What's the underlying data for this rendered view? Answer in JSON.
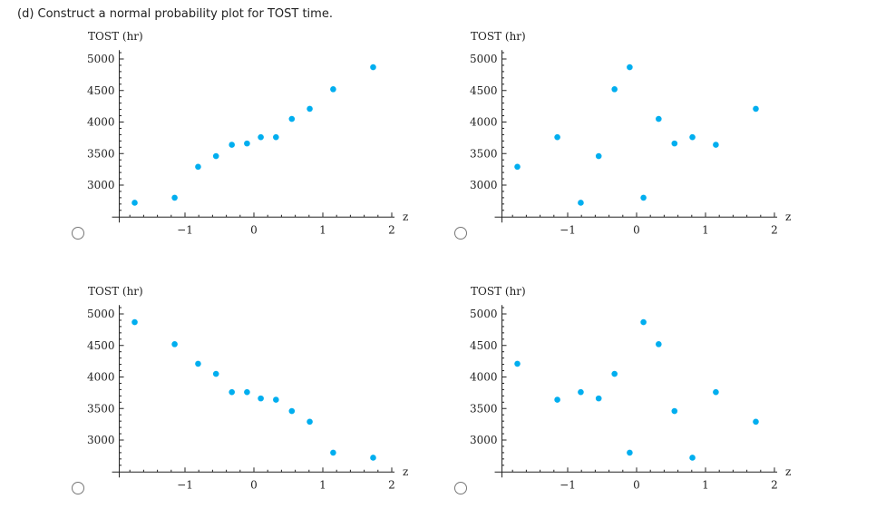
{
  "question": "(d) Construct a normal probability plot for TOST time.",
  "point_color": "#00aeef",
  "chart_data": [
    {
      "type": "scatter",
      "ylabel": "TOST (hr)",
      "xlabel": "z",
      "xlim": [
        -1.96,
        2.04
      ],
      "ylim": [
        2500,
        5140
      ],
      "x": [
        -1.73,
        -1.15,
        -0.81,
        -0.55,
        -0.32,
        -0.1,
        0.1,
        0.32,
        0.55,
        0.81,
        1.15,
        1.73
      ],
      "y": [
        2720,
        2800,
        3290,
        3460,
        3640,
        3660,
        3760,
        3760,
        4050,
        4210,
        4520,
        4870
      ],
      "xticks": [
        "−1",
        "0",
        "1",
        "2"
      ],
      "yticks": [
        "3000",
        "3500",
        "4000",
        "4500",
        "5000"
      ]
    },
    {
      "type": "scatter",
      "ylabel": "TOST (hr)",
      "xlabel": "z",
      "xlim": [
        -1.96,
        2.04
      ],
      "ylim": [
        2500,
        5140
      ],
      "x": [
        -1.73,
        -1.15,
        -0.81,
        -0.55,
        -0.32,
        -0.1,
        0.1,
        0.32,
        0.55,
        0.81,
        1.15,
        1.73
      ],
      "y": [
        3290,
        3760,
        2720,
        3460,
        4520,
        4870,
        2800,
        4050,
        3660,
        3760,
        3640,
        4210
      ],
      "xticks": [
        "−1",
        "0",
        "1",
        "2"
      ],
      "yticks": [
        "3000",
        "3500",
        "4000",
        "4500",
        "5000"
      ]
    },
    {
      "type": "scatter",
      "ylabel": "TOST (hr)",
      "xlabel": "z",
      "xlim": [
        -1.96,
        2.04
      ],
      "ylim": [
        2500,
        5140
      ],
      "x": [
        -1.73,
        -1.15,
        -0.81,
        -0.55,
        -0.32,
        -0.1,
        0.1,
        0.32,
        0.55,
        0.81,
        1.15,
        1.73
      ],
      "y": [
        4870,
        4520,
        4210,
        4050,
        3760,
        3760,
        3660,
        3640,
        3460,
        3290,
        2800,
        2720
      ],
      "xticks": [
        "−1",
        "0",
        "1",
        "2"
      ],
      "yticks": [
        "3000",
        "3500",
        "4000",
        "4500",
        "5000"
      ]
    },
    {
      "type": "scatter",
      "ylabel": "TOST (hr)",
      "xlabel": "z",
      "xlim": [
        -1.96,
        2.04
      ],
      "ylim": [
        2500,
        5140
      ],
      "x": [
        -1.73,
        -1.15,
        -0.81,
        -0.55,
        -0.32,
        -0.1,
        0.1,
        0.32,
        0.55,
        0.81,
        1.15,
        1.73
      ],
      "y": [
        4210,
        3640,
        3760,
        3660,
        4050,
        2800,
        4870,
        4520,
        3460,
        2720,
        3760,
        3290
      ],
      "xticks": [
        "−1",
        "0",
        "1",
        "2"
      ],
      "yticks": [
        "3000",
        "3500",
        "4000",
        "4500",
        "5000"
      ]
    }
  ]
}
